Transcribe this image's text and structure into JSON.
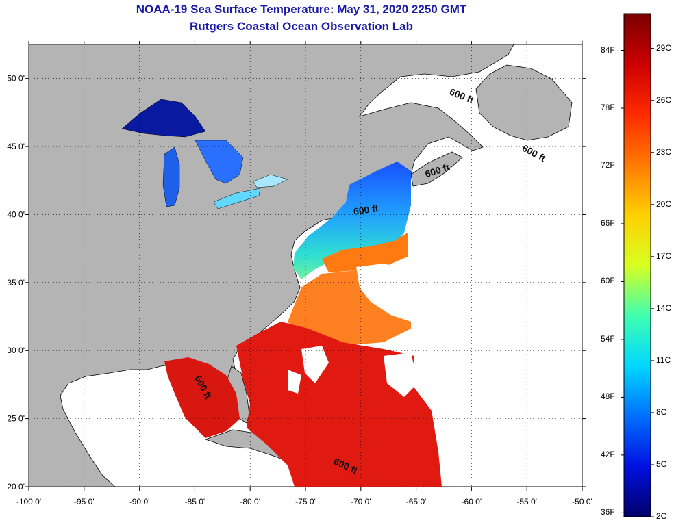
{
  "header": {
    "title": "NOAA-19 Sea Surface Temperature:  May 31, 2020 2250 GMT",
    "subtitle": "Rutgers Coastal Ocean Observation Lab"
  },
  "map": {
    "lon_range": [
      -100,
      -50
    ],
    "lat_range": [
      20,
      52.5
    ],
    "lon_ticks": [
      {
        "value": -100,
        "label": "-100 0'"
      },
      {
        "value": -95,
        "label": "-95 0'"
      },
      {
        "value": -90,
        "label": "-90 0'"
      },
      {
        "value": -85,
        "label": "-85 0'"
      },
      {
        "value": -80,
        "label": "-80 0'"
      },
      {
        "value": -75,
        "label": "-75 0'"
      },
      {
        "value": -70,
        "label": "-70 0'"
      },
      {
        "value": -65,
        "label": "-65 0'"
      },
      {
        "value": -60,
        "label": "-60 0'"
      },
      {
        "value": -55,
        "label": "-55 0'"
      },
      {
        "value": -50,
        "label": "-50 0'"
      }
    ],
    "lat_ticks": [
      {
        "value": 20,
        "label": "20 0'"
      },
      {
        "value": 25,
        "label": "25 0'"
      },
      {
        "value": 30,
        "label": "30 0'"
      },
      {
        "value": 35,
        "label": "35 0'"
      },
      {
        "value": 40,
        "label": "40 0'"
      },
      {
        "value": 45,
        "label": "45 0'"
      },
      {
        "value": 50,
        "label": "50 0'"
      }
    ],
    "isobath_labels": [
      {
        "text": "600 ft",
        "lon": -61,
        "lat": 48.5,
        "rotate": 22
      },
      {
        "text": "600 ft",
        "lon": -54.5,
        "lat": 44.3,
        "rotate": 28
      },
      {
        "text": "600 ft",
        "lon": -63,
        "lat": 43.0,
        "rotate": -18
      },
      {
        "text": "600 ft",
        "lon": -69.5,
        "lat": 40.1,
        "rotate": -8
      },
      {
        "text": "600 ft",
        "lon": -84.5,
        "lat": 27.2,
        "rotate": 62
      },
      {
        "text": "600 ft",
        "lon": -71.5,
        "lat": 21.3,
        "rotate": 25
      }
    ],
    "colors": {
      "land": "#b4b4b4",
      "ocean_nodata": "#ffffff",
      "grid": "#000000"
    }
  },
  "colorbar": {
    "top_c": 31,
    "bottom_c": 2,
    "f_labels": [
      "84F",
      "78F",
      "72F",
      "66F",
      "60F",
      "54F",
      "48F",
      "42F",
      "36F"
    ],
    "c_labels": [
      "29C",
      "26C",
      "23C",
      "20C",
      "17C",
      "14C",
      "11C",
      "8C",
      "5C",
      "2C"
    ]
  }
}
